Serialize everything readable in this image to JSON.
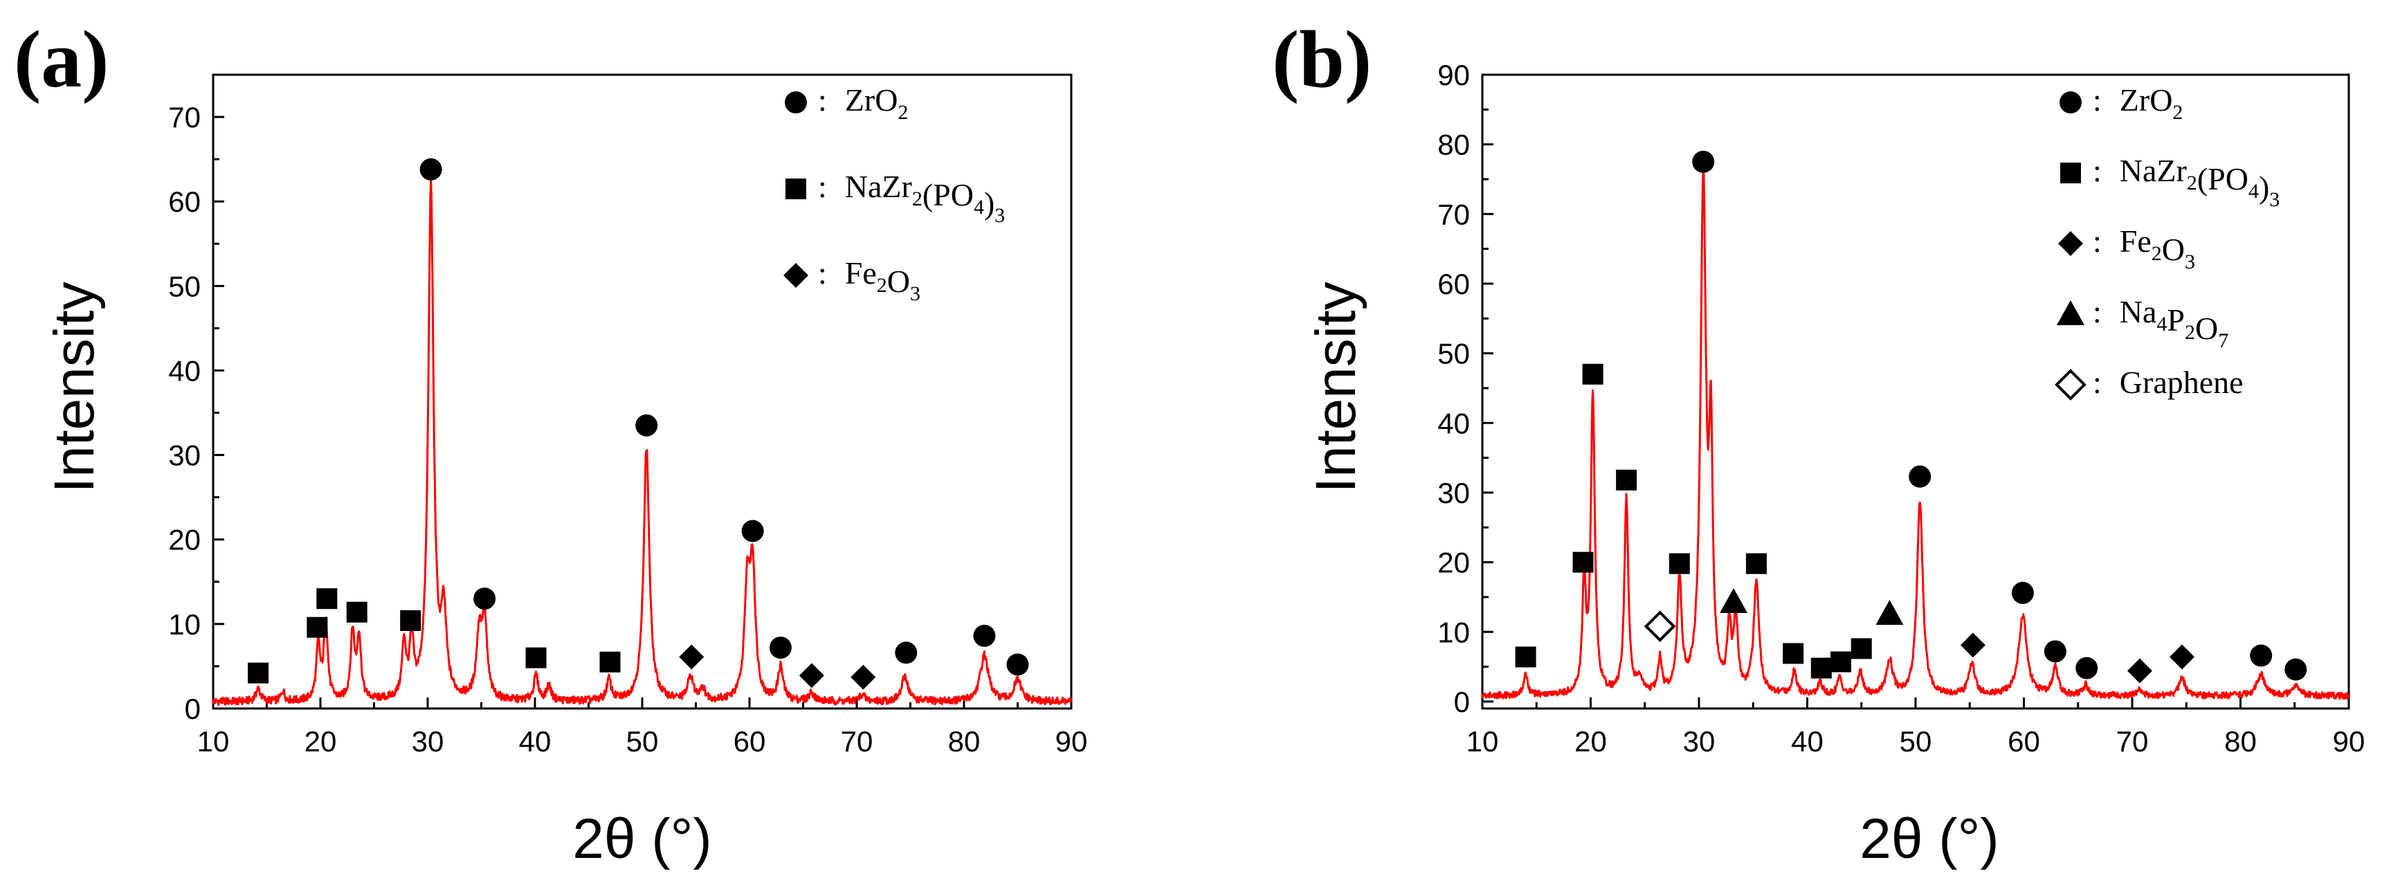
{
  "chart_data": [
    {
      "panel_label": "(a)",
      "type": "line",
      "xlabel": "2θ (°)",
      "ylabel": "Intensity",
      "xlim": [
        10,
        90
      ],
      "ylim": [
        0,
        75
      ],
      "xticks": [
        "10",
        "20",
        "30",
        "40",
        "50",
        "60",
        "70",
        "80",
        "90"
      ],
      "yticks": [
        "0",
        "10",
        "20",
        "30",
        "40",
        "50",
        "60",
        "70"
      ],
      "line_color": "#ff0000",
      "baseline": 0.8,
      "peaks": [
        {
          "x": 14.2,
          "y": 1.5,
          "w": 0.25
        },
        {
          "x": 16.5,
          "y": 1.2,
          "w": 0.2
        },
        {
          "x": 19.8,
          "y": 6.5,
          "w": 0.22
        },
        {
          "x": 20.5,
          "y": 9.5,
          "w": 0.22
        },
        {
          "x": 23.0,
          "y": 8.0,
          "w": 0.22
        },
        {
          "x": 23.6,
          "y": 7.5,
          "w": 0.22
        },
        {
          "x": 27.8,
          "y": 6.5,
          "w": 0.22
        },
        {
          "x": 28.5,
          "y": 7.0,
          "w": 0.22
        },
        {
          "x": 30.3,
          "y": 60.5,
          "w": 0.3
        },
        {
          "x": 31.5,
          "y": 9.5,
          "w": 0.3
        },
        {
          "x": 34.8,
          "y": 7.5,
          "w": 0.3
        },
        {
          "x": 35.3,
          "y": 9.0,
          "w": 0.28
        },
        {
          "x": 40.1,
          "y": 3.0,
          "w": 0.25
        },
        {
          "x": 41.3,
          "y": 1.8,
          "w": 0.25
        },
        {
          "x": 46.9,
          "y": 2.5,
          "w": 0.25
        },
        {
          "x": 50.4,
          "y": 30.0,
          "w": 0.32
        },
        {
          "x": 54.5,
          "y": 2.8,
          "w": 0.3
        },
        {
          "x": 55.6,
          "y": 1.5,
          "w": 0.3
        },
        {
          "x": 59.8,
          "y": 13.0,
          "w": 0.3
        },
        {
          "x": 60.3,
          "y": 15.0,
          "w": 0.3
        },
        {
          "x": 62.9,
          "y": 4.0,
          "w": 0.28
        },
        {
          "x": 65.8,
          "y": 1.0,
          "w": 0.3
        },
        {
          "x": 70.5,
          "y": 0.8,
          "w": 0.3
        },
        {
          "x": 74.5,
          "y": 3.0,
          "w": 0.35
        },
        {
          "x": 81.9,
          "y": 5.5,
          "w": 0.45
        },
        {
          "x": 85.0,
          "y": 2.5,
          "w": 0.4
        }
      ],
      "markers": [
        {
          "shape": "circle",
          "x": 30.3,
          "y": 63.8
        },
        {
          "shape": "circle",
          "x": 35.3,
          "y": 13.0
        },
        {
          "shape": "circle",
          "x": 50.4,
          "y": 33.5
        },
        {
          "shape": "circle",
          "x": 60.3,
          "y": 21.0
        },
        {
          "shape": "circle",
          "x": 62.9,
          "y": 7.2
        },
        {
          "shape": "circle",
          "x": 74.6,
          "y": 6.6
        },
        {
          "shape": "circle",
          "x": 81.9,
          "y": 8.6
        },
        {
          "shape": "circle",
          "x": 85.0,
          "y": 5.2
        },
        {
          "shape": "square",
          "x": 14.2,
          "y": 4.2
        },
        {
          "shape": "square",
          "x": 19.7,
          "y": 9.6
        },
        {
          "shape": "square",
          "x": 20.6,
          "y": 13.0
        },
        {
          "shape": "square",
          "x": 23.4,
          "y": 11.4
        },
        {
          "shape": "square",
          "x": 28.4,
          "y": 10.4
        },
        {
          "shape": "square",
          "x": 40.1,
          "y": 6.0
        },
        {
          "shape": "square",
          "x": 47.0,
          "y": 5.5
        },
        {
          "shape": "diamond",
          "x": 54.6,
          "y": 6.1
        },
        {
          "shape": "diamond",
          "x": 65.8,
          "y": 3.9
        },
        {
          "shape": "diamond",
          "x": 70.6,
          "y": 3.7
        }
      ],
      "legend": [
        {
          "shape": "circle",
          "text": "ZrO",
          "sub": "2",
          "after": ""
        },
        {
          "shape": "square",
          "text": "NaZr",
          "sub": "2",
          "after": "(PO",
          "sub2": "4",
          "after2": ")",
          "sub3": "3"
        },
        {
          "shape": "diamond",
          "text": "Fe",
          "sub": "2",
          "after": "O",
          "sub2": "3",
          "after2": "",
          "sub3": ""
        }
      ],
      "legend_separator": ":"
    },
    {
      "panel_label": "(b)",
      "type": "line",
      "xlabel": "2θ (°)",
      "ylabel": "Intensity",
      "xlim": [
        10,
        90
      ],
      "ylim": [
        -1,
        90
      ],
      "xticks": [
        "10",
        "20",
        "30",
        "40",
        "50",
        "60",
        "70",
        "80",
        "90"
      ],
      "yticks": [
        "0",
        "10",
        "20",
        "30",
        "40",
        "50",
        "60",
        "70",
        "80",
        "90"
      ],
      "line_color": "#ff0000",
      "baseline": 0.8,
      "peaks": [
        {
          "x": 14.0,
          "y": 3.0,
          "w": 0.22
        },
        {
          "x": 19.4,
          "y": 15.5,
          "w": 0.2
        },
        {
          "x": 20.2,
          "y": 43.0,
          "w": 0.22
        },
        {
          "x": 23.3,
          "y": 28.0,
          "w": 0.22
        },
        {
          "x": 24.5,
          "y": 2.0,
          "w": 0.3
        },
        {
          "x": 26.4,
          "y": 5.0,
          "w": 0.2
        },
        {
          "x": 28.2,
          "y": 16.0,
          "w": 0.25
        },
        {
          "x": 30.4,
          "y": 73.0,
          "w": 0.3
        },
        {
          "x": 31.1,
          "y": 33.0,
          "w": 0.2
        },
        {
          "x": 32.8,
          "y": 9.0,
          "w": 0.22
        },
        {
          "x": 33.4,
          "y": 10.5,
          "w": 0.22
        },
        {
          "x": 35.3,
          "y": 16.0,
          "w": 0.3
        },
        {
          "x": 38.8,
          "y": 3.5,
          "w": 0.25
        },
        {
          "x": 41.2,
          "y": 1.8,
          "w": 0.25
        },
        {
          "x": 43.0,
          "y": 2.5,
          "w": 0.25
        },
        {
          "x": 44.9,
          "y": 3.5,
          "w": 0.25
        },
        {
          "x": 47.6,
          "y": 5.0,
          "w": 0.35
        },
        {
          "x": 50.4,
          "y": 28.0,
          "w": 0.32
        },
        {
          "x": 55.2,
          "y": 4.5,
          "w": 0.35
        },
        {
          "x": 59.9,
          "y": 11.5,
          "w": 0.45
        },
        {
          "x": 62.9,
          "y": 4.0,
          "w": 0.3
        },
        {
          "x": 65.7,
          "y": 1.5,
          "w": 0.3
        },
        {
          "x": 70.7,
          "y": 0.8,
          "w": 0.3
        },
        {
          "x": 74.6,
          "y": 2.5,
          "w": 0.35
        },
        {
          "x": 81.9,
          "y": 3.0,
          "w": 0.45
        },
        {
          "x": 85.1,
          "y": 1.5,
          "w": 0.4
        }
      ],
      "markers": [
        {
          "shape": "circle",
          "x": 30.4,
          "y": 77.5
        },
        {
          "shape": "circle",
          "x": 50.4,
          "y": 32.3
        },
        {
          "shape": "circle",
          "x": 59.9,
          "y": 15.6
        },
        {
          "shape": "circle",
          "x": 62.9,
          "y": 7.2
        },
        {
          "shape": "circle",
          "x": 65.8,
          "y": 4.8
        },
        {
          "shape": "circle",
          "x": 81.9,
          "y": 6.6
        },
        {
          "shape": "circle",
          "x": 85.1,
          "y": 4.6
        },
        {
          "shape": "square",
          "x": 14.0,
          "y": 6.4
        },
        {
          "shape": "square",
          "x": 19.3,
          "y": 20.0
        },
        {
          "shape": "square",
          "x": 20.2,
          "y": 47.0
        },
        {
          "shape": "square",
          "x": 23.3,
          "y": 31.8
        },
        {
          "shape": "square",
          "x": 28.2,
          "y": 19.8
        },
        {
          "shape": "square",
          "x": 35.3,
          "y": 19.8
        },
        {
          "shape": "square",
          "x": 38.7,
          "y": 6.9
        },
        {
          "shape": "square",
          "x": 41.3,
          "y": 4.8
        },
        {
          "shape": "square",
          "x": 43.1,
          "y": 5.7
        },
        {
          "shape": "square",
          "x": 45.0,
          "y": 7.6
        },
        {
          "shape": "triangle",
          "x": 33.2,
          "y": 14.3
        },
        {
          "shape": "triangle",
          "x": 47.6,
          "y": 12.6
        },
        {
          "shape": "diamond",
          "x": 55.3,
          "y": 8.1
        },
        {
          "shape": "diamond",
          "x": 70.7,
          "y": 4.4
        },
        {
          "shape": "diamond",
          "x": 74.6,
          "y": 6.4
        },
        {
          "shape": "open-diamond",
          "x": 26.4,
          "y": 10.8
        }
      ],
      "legend": [
        {
          "shape": "circle",
          "text": "ZrO",
          "sub": "2",
          "after": "",
          "sub2": "",
          "after2": "",
          "sub3": ""
        },
        {
          "shape": "square",
          "text": "NaZr",
          "sub": "2",
          "after": "(PO",
          "sub2": "4",
          "after2": ")",
          "sub3": "3"
        },
        {
          "shape": "diamond",
          "text": "Fe",
          "sub": "2",
          "after": "O",
          "sub2": "3",
          "after2": "",
          "sub3": ""
        },
        {
          "shape": "triangle",
          "text": "Na",
          "sub": "4",
          "after": "P",
          "sub2": "2",
          "after2": "O",
          "sub3": "7"
        },
        {
          "shape": "open-diamond",
          "text": "Graphene",
          "sub": "",
          "after": "",
          "sub2": "",
          "after2": "",
          "sub3": ""
        }
      ],
      "legend_separator": ":"
    }
  ]
}
